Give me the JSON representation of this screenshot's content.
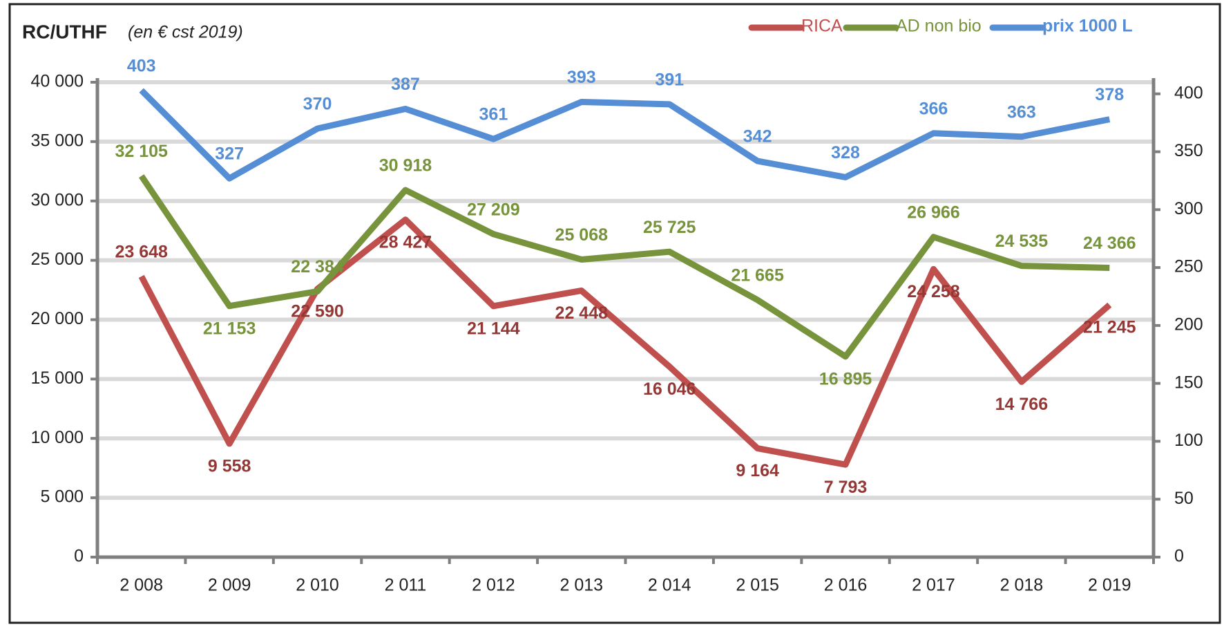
{
  "chart_data": {
    "type": "line",
    "title": "RC/UTHF",
    "subtitle": "(en € cst 2019)",
    "categories": [
      "2 008",
      "2 009",
      "2 010",
      "2 011",
      "2 012",
      "2 013",
      "2 014",
      "2 015",
      "2 016",
      "2 017",
      "2 018",
      "2 019"
    ],
    "series": [
      {
        "name": "RICA",
        "color": "#c0504d",
        "label_color": "#953735",
        "values": [
          23648,
          9558,
          22590,
          28427,
          21144,
          22448,
          16046,
          9164,
          7793,
          24258,
          14766,
          21245
        ],
        "value_labels": [
          "23 648",
          "9 558",
          "22 590",
          "28 427",
          "21 144",
          "22 448",
          "16 046",
          "9 164",
          "7 793",
          "24 258",
          "14 766",
          "21 245"
        ]
      },
      {
        "name": "AD non bio",
        "color": "#77933c",
        "label_color": "#77933c",
        "values": [
          32105,
          21153,
          22384,
          30918,
          27209,
          25068,
          25725,
          21665,
          16895,
          26966,
          24535,
          24366
        ],
        "value_labels": [
          "32 105",
          "21 153",
          "22 384",
          "30 918",
          "27 209",
          "25 068",
          "25 725",
          "21 665",
          "16 895",
          "26 966",
          "24 535",
          "24 366"
        ]
      },
      {
        "name": "prix 1000 L",
        "color": "#558ed5",
        "label_color": "#558ed5",
        "axis": "y2",
        "values": [
          403,
          327,
          370,
          387,
          361,
          393,
          391,
          342,
          328,
          366,
          363,
          378
        ]
      }
    ],
    "ylim": [
      0,
      40000
    ],
    "yticks": [
      0,
      {
        "value": 5000,
        "label": "5 000"
      },
      {
        "value": 10000,
        "label": "10 000"
      },
      {
        "value": 15000,
        "label": "15 000"
      },
      {
        "value": 20000,
        "label": "20 000"
      },
      {
        "value": 25000,
        "label": "25 000"
      },
      {
        "value": 30000,
        "label": "30 000"
      },
      {
        "value": 35000,
        "label": "35 000"
      },
      {
        "value": 40000,
        "label": "40 000"
      }
    ],
    "y2lim": [
      0,
      410
    ],
    "y2ticks": [
      0,
      50,
      100,
      150,
      200,
      250,
      300,
      350,
      400
    ],
    "grid": true,
    "legend": "top-right"
  }
}
